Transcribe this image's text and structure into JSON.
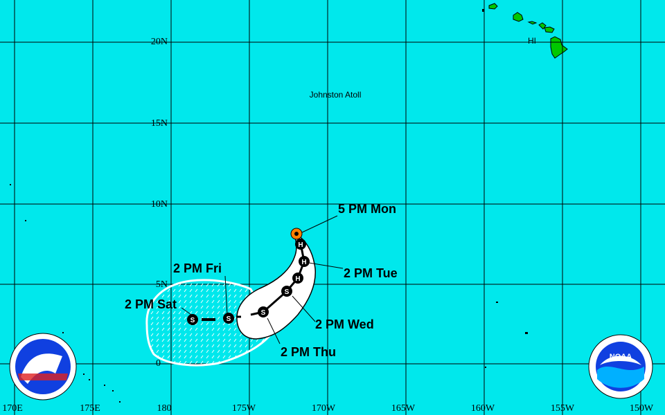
{
  "map": {
    "colors": {
      "ocean": "#00e8ec",
      "land": "#00c800",
      "cone": "#ffffff",
      "current_position": "#ff8000",
      "track": "#000000"
    },
    "lat_labels": [
      "20N",
      "15N",
      "10N",
      "5N",
      "0"
    ],
    "lon_labels": [
      "170E",
      "175E",
      "180",
      "175W",
      "170W",
      "165W",
      "160W",
      "155W",
      "150W"
    ],
    "places": {
      "johnston": "Johnston Atoll",
      "hawaii": "HI"
    },
    "forecast_points": [
      {
        "label": "5 PM Mon",
        "type": "current"
      },
      {
        "label": "",
        "type": "H"
      },
      {
        "label": "2 PM Tue",
        "type": "H"
      },
      {
        "label": "",
        "type": "H"
      },
      {
        "label": "2 PM Wed",
        "type": "S"
      },
      {
        "label": "2 PM Thu",
        "type": "S"
      },
      {
        "label": "2 PM Fri",
        "type": "S"
      },
      {
        "label": "2 PM Sat",
        "type": "S"
      }
    ],
    "logos": {
      "left": "NATIONAL WEATHER SERVICE",
      "right": "NOAA"
    }
  }
}
